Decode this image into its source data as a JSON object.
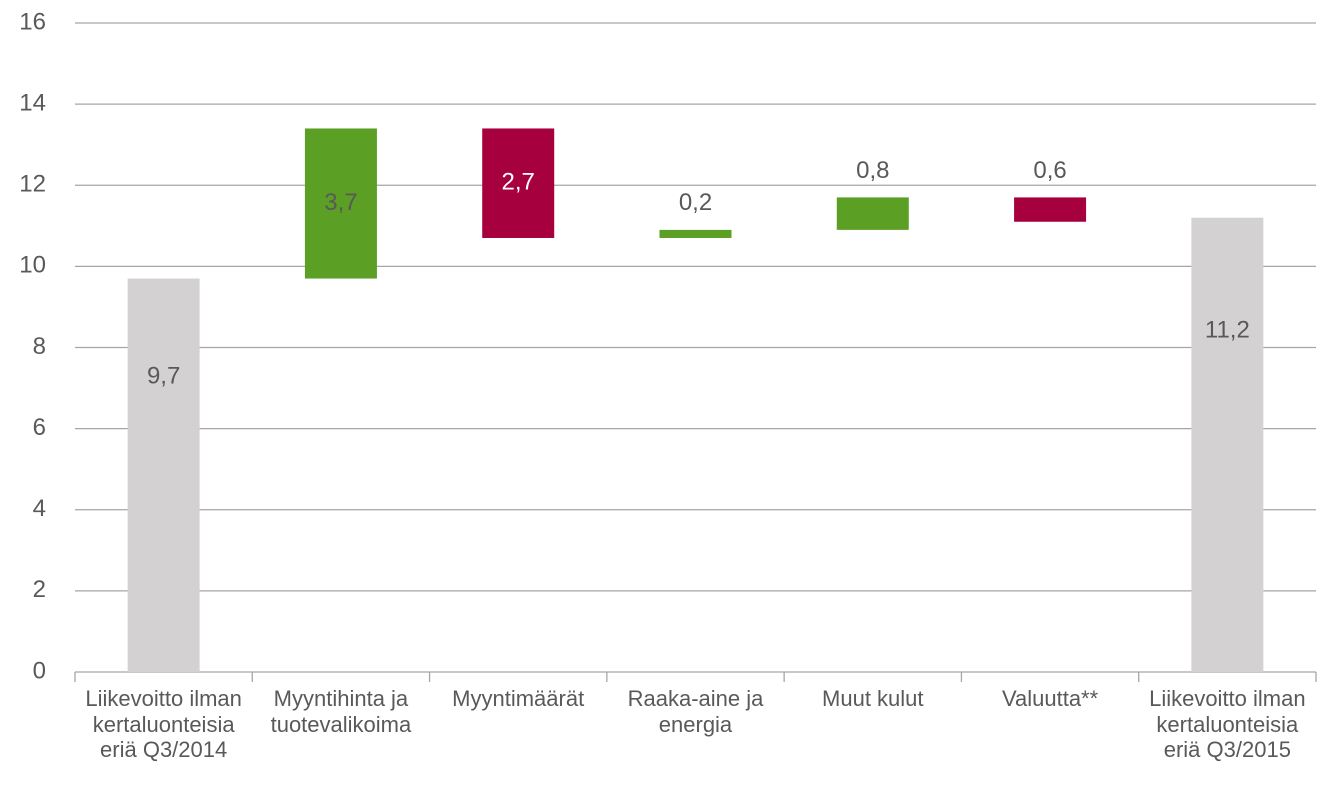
{
  "chart_data": {
    "type": "waterfall",
    "categories": [
      "Liikevoitto ilman kertaluonteisia eriä Q3/2014",
      "Myyntihinta ja tuotevalikoima",
      "Myyntimäärät",
      "Raaka-aine ja energia",
      "Muut kulut",
      "Valuutta**",
      "Liikevoitto ilman kertaluonteisia eriä Q3/2015"
    ],
    "values": [
      9.7,
      3.7,
      -2.7,
      0.2,
      0.8,
      -0.6,
      11.2
    ],
    "value_labels": [
      "9,7",
      "3,7",
      "2,7",
      "0,2",
      "0,8",
      "0,6",
      "11,2"
    ],
    "colors": [
      "#d4d1d2",
      "#5b9f25",
      "#a6003f",
      "#5b9f25",
      "#5b9f25",
      "#a6003f",
      "#d4d1d2"
    ],
    "ylim": [
      0,
      16
    ],
    "yticks": [
      0,
      2,
      4,
      6,
      8,
      10,
      12,
      14,
      16
    ],
    "grid": true
  }
}
